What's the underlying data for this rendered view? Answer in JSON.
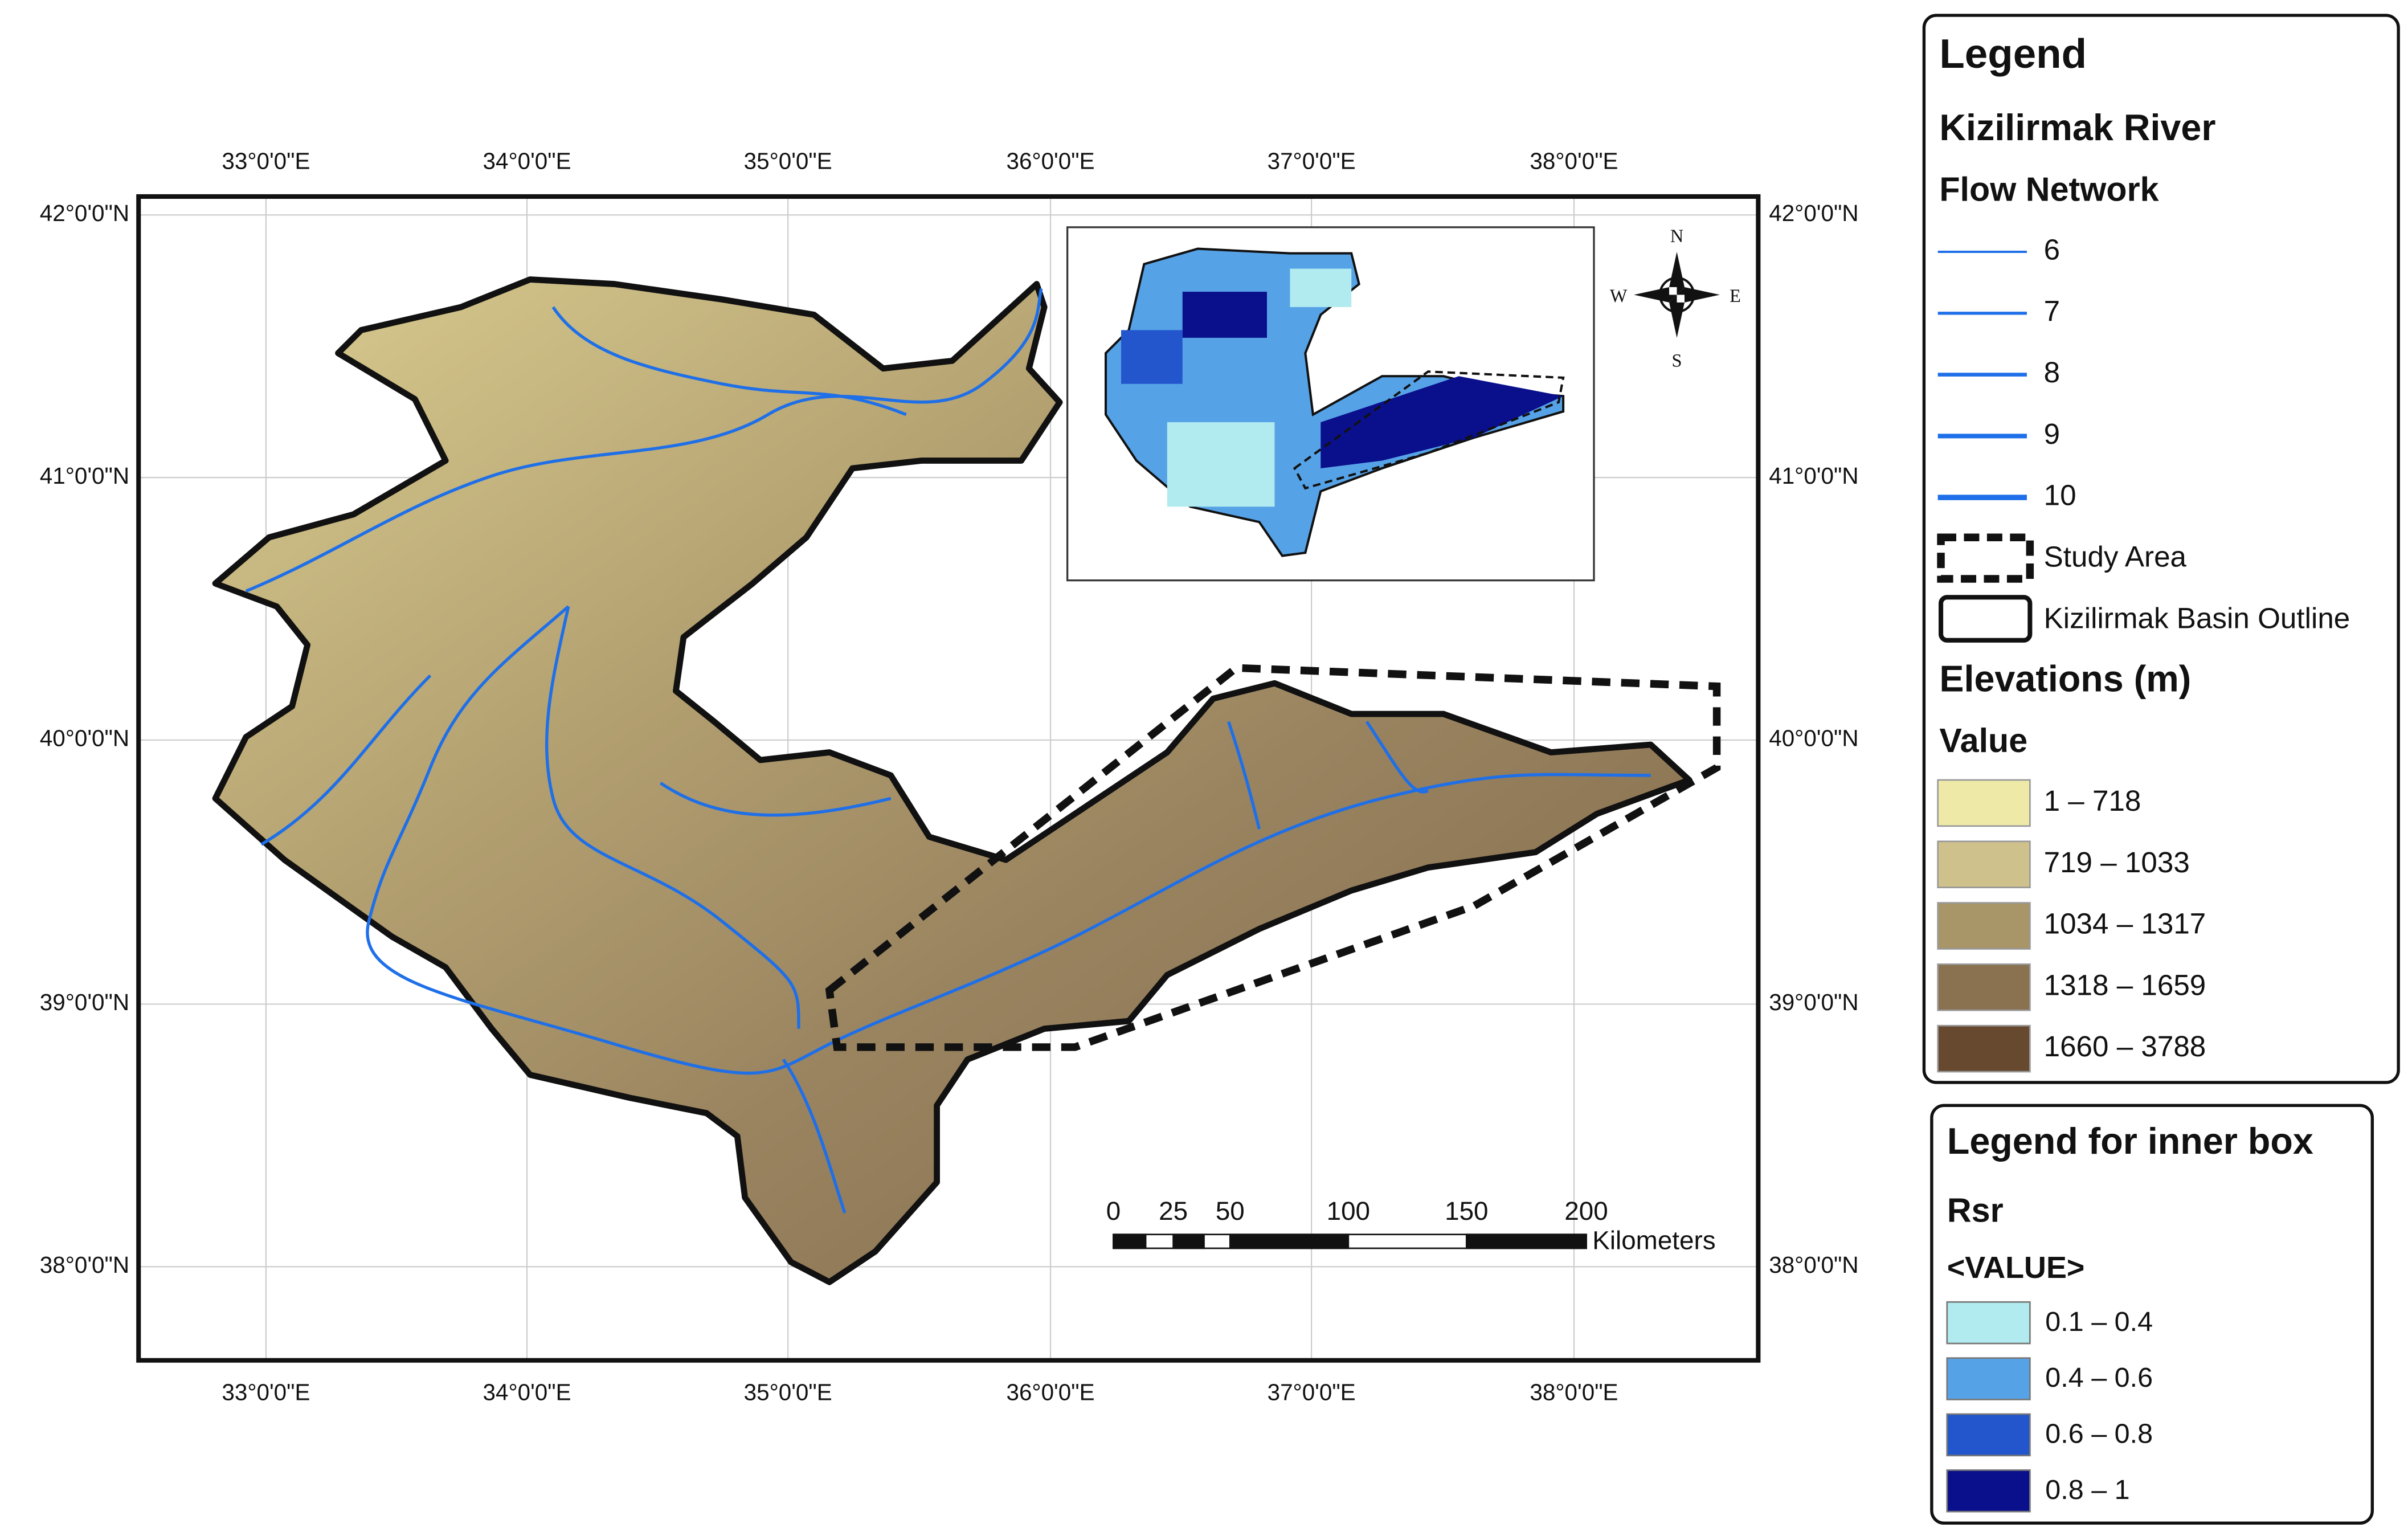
{
  "map": {
    "lon_ticks": [
      "33°0'0\"E",
      "34°0'0\"E",
      "35°0'0\"E",
      "36°0'0\"E",
      "37°0'0\"E",
      "38°0'0\"E"
    ],
    "lat_ticks": [
      "42°0'0\"N",
      "41°0'0\"N",
      "40°0'0\"N",
      "39°0'0\"N",
      "38°0'0\"N"
    ],
    "compass": {
      "n": "N",
      "e": "E",
      "s": "S",
      "w": "W"
    },
    "scale_bar": {
      "labels": [
        "0",
        "25",
        "50",
        "100",
        "150",
        "200"
      ],
      "unit": "Kilometers"
    }
  },
  "legend": {
    "title": "Legend",
    "river": "Kizilirmak River",
    "flow_title": "Flow Network",
    "flow": [
      "6",
      "7",
      "8",
      "9",
      "10"
    ],
    "study_area": "Study Area",
    "basin": "Kizilirmak Basin Outline",
    "elev_title": "Elevations (m)",
    "value": "Value",
    "elev_classes": [
      {
        "label": "1 – 718",
        "color": "#efe9a8"
      },
      {
        "label": "719 – 1033",
        "color": "#cfc18c"
      },
      {
        "label": "1034 – 1317",
        "color": "#a89669"
      },
      {
        "label": "1318 – 1659",
        "color": "#8a7150"
      },
      {
        "label": "1660 – 3788",
        "color": "#67492f"
      }
    ]
  },
  "inner_legend": {
    "title": "Legend for inner box",
    "name": "Rsr",
    "field": "<VALUE>",
    "classes": [
      {
        "label": "0.1 – 0.4",
        "color": "#b1ebef"
      },
      {
        "label": "0.4 – 0.6",
        "color": "#56a2e6"
      },
      {
        "label": "0.6 – 0.8",
        "color": "#2356cc"
      },
      {
        "label": "0.8 – 1",
        "color": "#0a0f8c"
      }
    ]
  }
}
